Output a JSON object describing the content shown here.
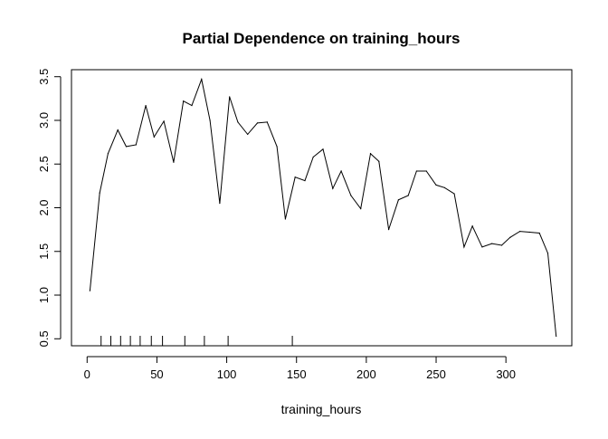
{
  "chart_data": {
    "type": "line",
    "title": "Partial Dependence on training_hours",
    "xlabel": "training_hours",
    "ylabel": "",
    "xlim": [
      -11.2,
      347.2
    ],
    "ylim": [
      0.42,
      3.58
    ],
    "x_ticks": [
      0,
      50,
      100,
      150,
      200,
      250,
      300
    ],
    "y_ticks": [
      0.5,
      1.0,
      1.5,
      2.0,
      2.5,
      3.0,
      3.5
    ],
    "x_tick_labels": [
      "0",
      "50",
      "100",
      "150",
      "200",
      "250",
      "300"
    ],
    "y_tick_labels": [
      "0.5",
      "1.0",
      "1.5",
      "2.0",
      "2.5",
      "3.0",
      "3.5"
    ],
    "grid": false,
    "legend": "none",
    "line_color": "#000000",
    "series": [
      {
        "x": [
          2,
          9,
          15,
          22,
          28,
          35,
          42,
          48,
          55,
          62,
          69,
          75,
          82,
          88,
          95,
          102,
          108,
          115,
          122,
          129,
          136,
          142,
          149,
          156,
          162,
          169,
          176,
          182,
          189,
          196,
          203,
          209,
          216,
          223,
          230,
          236,
          243,
          250,
          256,
          263,
          270,
          276,
          283,
          290,
          297,
          303,
          310,
          317,
          324,
          330,
          336
        ],
        "y": [
          1.05,
          2.17,
          2.62,
          2.89,
          2.7,
          2.72,
          3.17,
          2.81,
          2.99,
          2.52,
          3.22,
          3.17,
          3.47,
          3.0,
          2.05,
          3.27,
          2.98,
          2.84,
          2.97,
          2.98,
          2.7,
          1.87,
          2.35,
          2.31,
          2.58,
          2.67,
          2.22,
          2.42,
          2.14,
          1.99,
          2.62,
          2.53,
          1.75,
          2.09,
          2.14,
          2.42,
          2.42,
          2.26,
          2.23,
          2.16,
          1.55,
          1.79,
          1.55,
          1.59,
          1.57,
          1.66,
          1.73,
          1.72,
          1.71,
          1.48,
          0.53
        ]
      }
    ],
    "rug": [
      10,
      17,
      24,
      31,
      38,
      46,
      54,
      70,
      84,
      101,
      147
    ]
  }
}
